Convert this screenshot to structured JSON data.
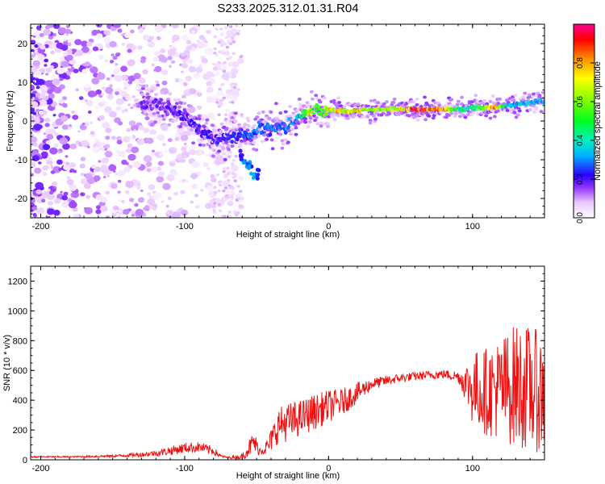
{
  "title": "S233.2025.312.01.31.R04",
  "colors": {
    "axis": "#000000",
    "snr_line": "#ee1111",
    "background": "#ffffff"
  },
  "chart_data": [
    {
      "type": "heatmap",
      "name": "spectrogram",
      "xlabel": "Height of straight line (km)",
      "ylabel": "Frequency (Hz)",
      "xlim": [
        -207,
        150
      ],
      "ylim": [
        -25,
        25
      ],
      "xticks": [
        -200,
        -100,
        0,
        100
      ],
      "xtick_labels": [
        "-200",
        "-100",
        "0",
        "100"
      ],
      "yticks": [
        -20,
        -10,
        0,
        10,
        20
      ],
      "ytick_labels": [
        "-20",
        "-10",
        "0",
        "10",
        "20"
      ],
      "colorbar": {
        "label": "Normalized spectral amplitude",
        "range": [
          0,
          1
        ],
        "ticks": [
          0.0,
          0.2,
          0.4,
          0.6,
          0.8
        ],
        "tick_labels": [
          "0.0",
          "0.2",
          "0.4",
          "0.6",
          "0.8"
        ],
        "colormap": "rainbow (violet → blue → cyan → green → yellow → red)"
      },
      "ridge": {
        "description": "dominant frequency track of the signal vs height",
        "points": [
          {
            "x": -120,
            "f": 4.5,
            "amp": 0.18
          },
          {
            "x": -110,
            "f": 3.5,
            "amp": 0.2
          },
          {
            "x": -100,
            "f": 1.0,
            "amp": 0.22
          },
          {
            "x": -90,
            "f": -2.0,
            "amp": 0.22
          },
          {
            "x": -80,
            "f": -5.0,
            "amp": 0.22
          },
          {
            "x": -65,
            "f": -3.5,
            "amp": 0.24
          },
          {
            "x": -55,
            "f": -3.5,
            "amp": 0.28
          },
          {
            "x": -48,
            "f": -1.5,
            "amp": 0.3
          },
          {
            "x": -40,
            "f": -2.0,
            "amp": 0.3
          },
          {
            "x": -30,
            "f": -1.5,
            "amp": 0.32
          },
          {
            "x": -20,
            "f": 1.0,
            "amp": 0.35
          },
          {
            "x": -15,
            "f": 2.5,
            "amp": 0.7
          },
          {
            "x": -5,
            "f": 2.5,
            "amp": 0.55
          },
          {
            "x": 0,
            "f": 3.0,
            "amp": 0.75
          },
          {
            "x": 15,
            "f": 2.5,
            "amp": 0.8
          },
          {
            "x": 30,
            "f": 3.0,
            "amp": 0.7
          },
          {
            "x": 50,
            "f": 3.0,
            "amp": 0.7
          },
          {
            "x": 60,
            "f": 3.0,
            "amp": 0.95
          },
          {
            "x": 70,
            "f": 3.0,
            "amp": 0.95
          },
          {
            "x": 80,
            "f": 3.0,
            "amp": 0.9
          },
          {
            "x": 90,
            "f": 3.0,
            "amp": 0.45
          },
          {
            "x": 100,
            "f": 3.5,
            "amp": 0.45
          },
          {
            "x": 110,
            "f": 3.5,
            "amp": 0.6
          },
          {
            "x": 115,
            "f": 3.5,
            "amp": 0.9
          },
          {
            "x": 125,
            "f": 4.0,
            "amp": 0.35
          },
          {
            "x": 135,
            "f": 4.5,
            "amp": 0.35
          },
          {
            "x": 145,
            "f": 5.0,
            "amp": 0.35
          },
          {
            "x": 150,
            "f": 5.0,
            "amp": 0.35
          }
        ]
      },
      "side_track": [
        {
          "x": -60,
          "f": -9,
          "amp": 0.3
        },
        {
          "x": -55,
          "f": -12,
          "amp": 0.35
        },
        {
          "x": -50,
          "f": -14,
          "amp": 0.3
        }
      ],
      "noise_region": {
        "x": [
          -207,
          -60
        ],
        "f": [
          -25,
          25
        ],
        "amp_range": [
          0.02,
          0.15
        ]
      }
    },
    {
      "type": "line",
      "name": "snr",
      "xlabel": "Height of straight line (km)",
      "ylabel": "SNR (10 * v/v)",
      "xlim": [
        -207,
        150
      ],
      "ylim": [
        0,
        1300
      ],
      "xticks": [
        -200,
        -100,
        0,
        100
      ],
      "xtick_labels": [
        "-200",
        "-100",
        "0",
        "100"
      ],
      "yticks": [
        0,
        200,
        400,
        600,
        800,
        1000,
        1200
      ],
      "ytick_labels": [
        "0",
        "200",
        "400",
        "600",
        "800",
        "1000",
        "1200"
      ],
      "series": [
        {
          "name": "SNR",
          "color": "#ee1111",
          "envelope": {
            "x": [
              -207,
              -180,
              -150,
              -130,
              -120,
              -110,
              -100,
              -90,
              -80,
              -75,
              -70,
              -60,
              -52,
              -48,
              -42,
              -35,
              -30,
              -25,
              -20,
              -10,
              0,
              10,
              20,
              30,
              40,
              50,
              60,
              70,
              80,
              90,
              95,
              100,
              110,
              120,
              130,
              140,
              150
            ],
            "mean": [
              20,
              20,
              25,
              35,
              45,
              60,
              80,
              85,
              60,
              25,
              15,
              20,
              120,
              60,
              90,
              230,
              250,
              260,
              280,
              320,
              360,
              390,
              450,
              510,
              530,
              550,
              560,
              570,
              575,
              560,
              520,
              480,
              460,
              480,
              500,
              480,
              440
            ],
            "spread": [
              5,
              5,
              8,
              15,
              20,
              30,
              35,
              35,
              30,
              10,
              5,
              20,
              80,
              30,
              60,
              120,
              130,
              130,
              120,
              120,
              110,
              90,
              70,
              40,
              35,
              30,
              30,
              30,
              30,
              40,
              120,
              250,
              300,
              350,
              420,
              420,
              400
            ]
          }
        }
      ]
    }
  ]
}
